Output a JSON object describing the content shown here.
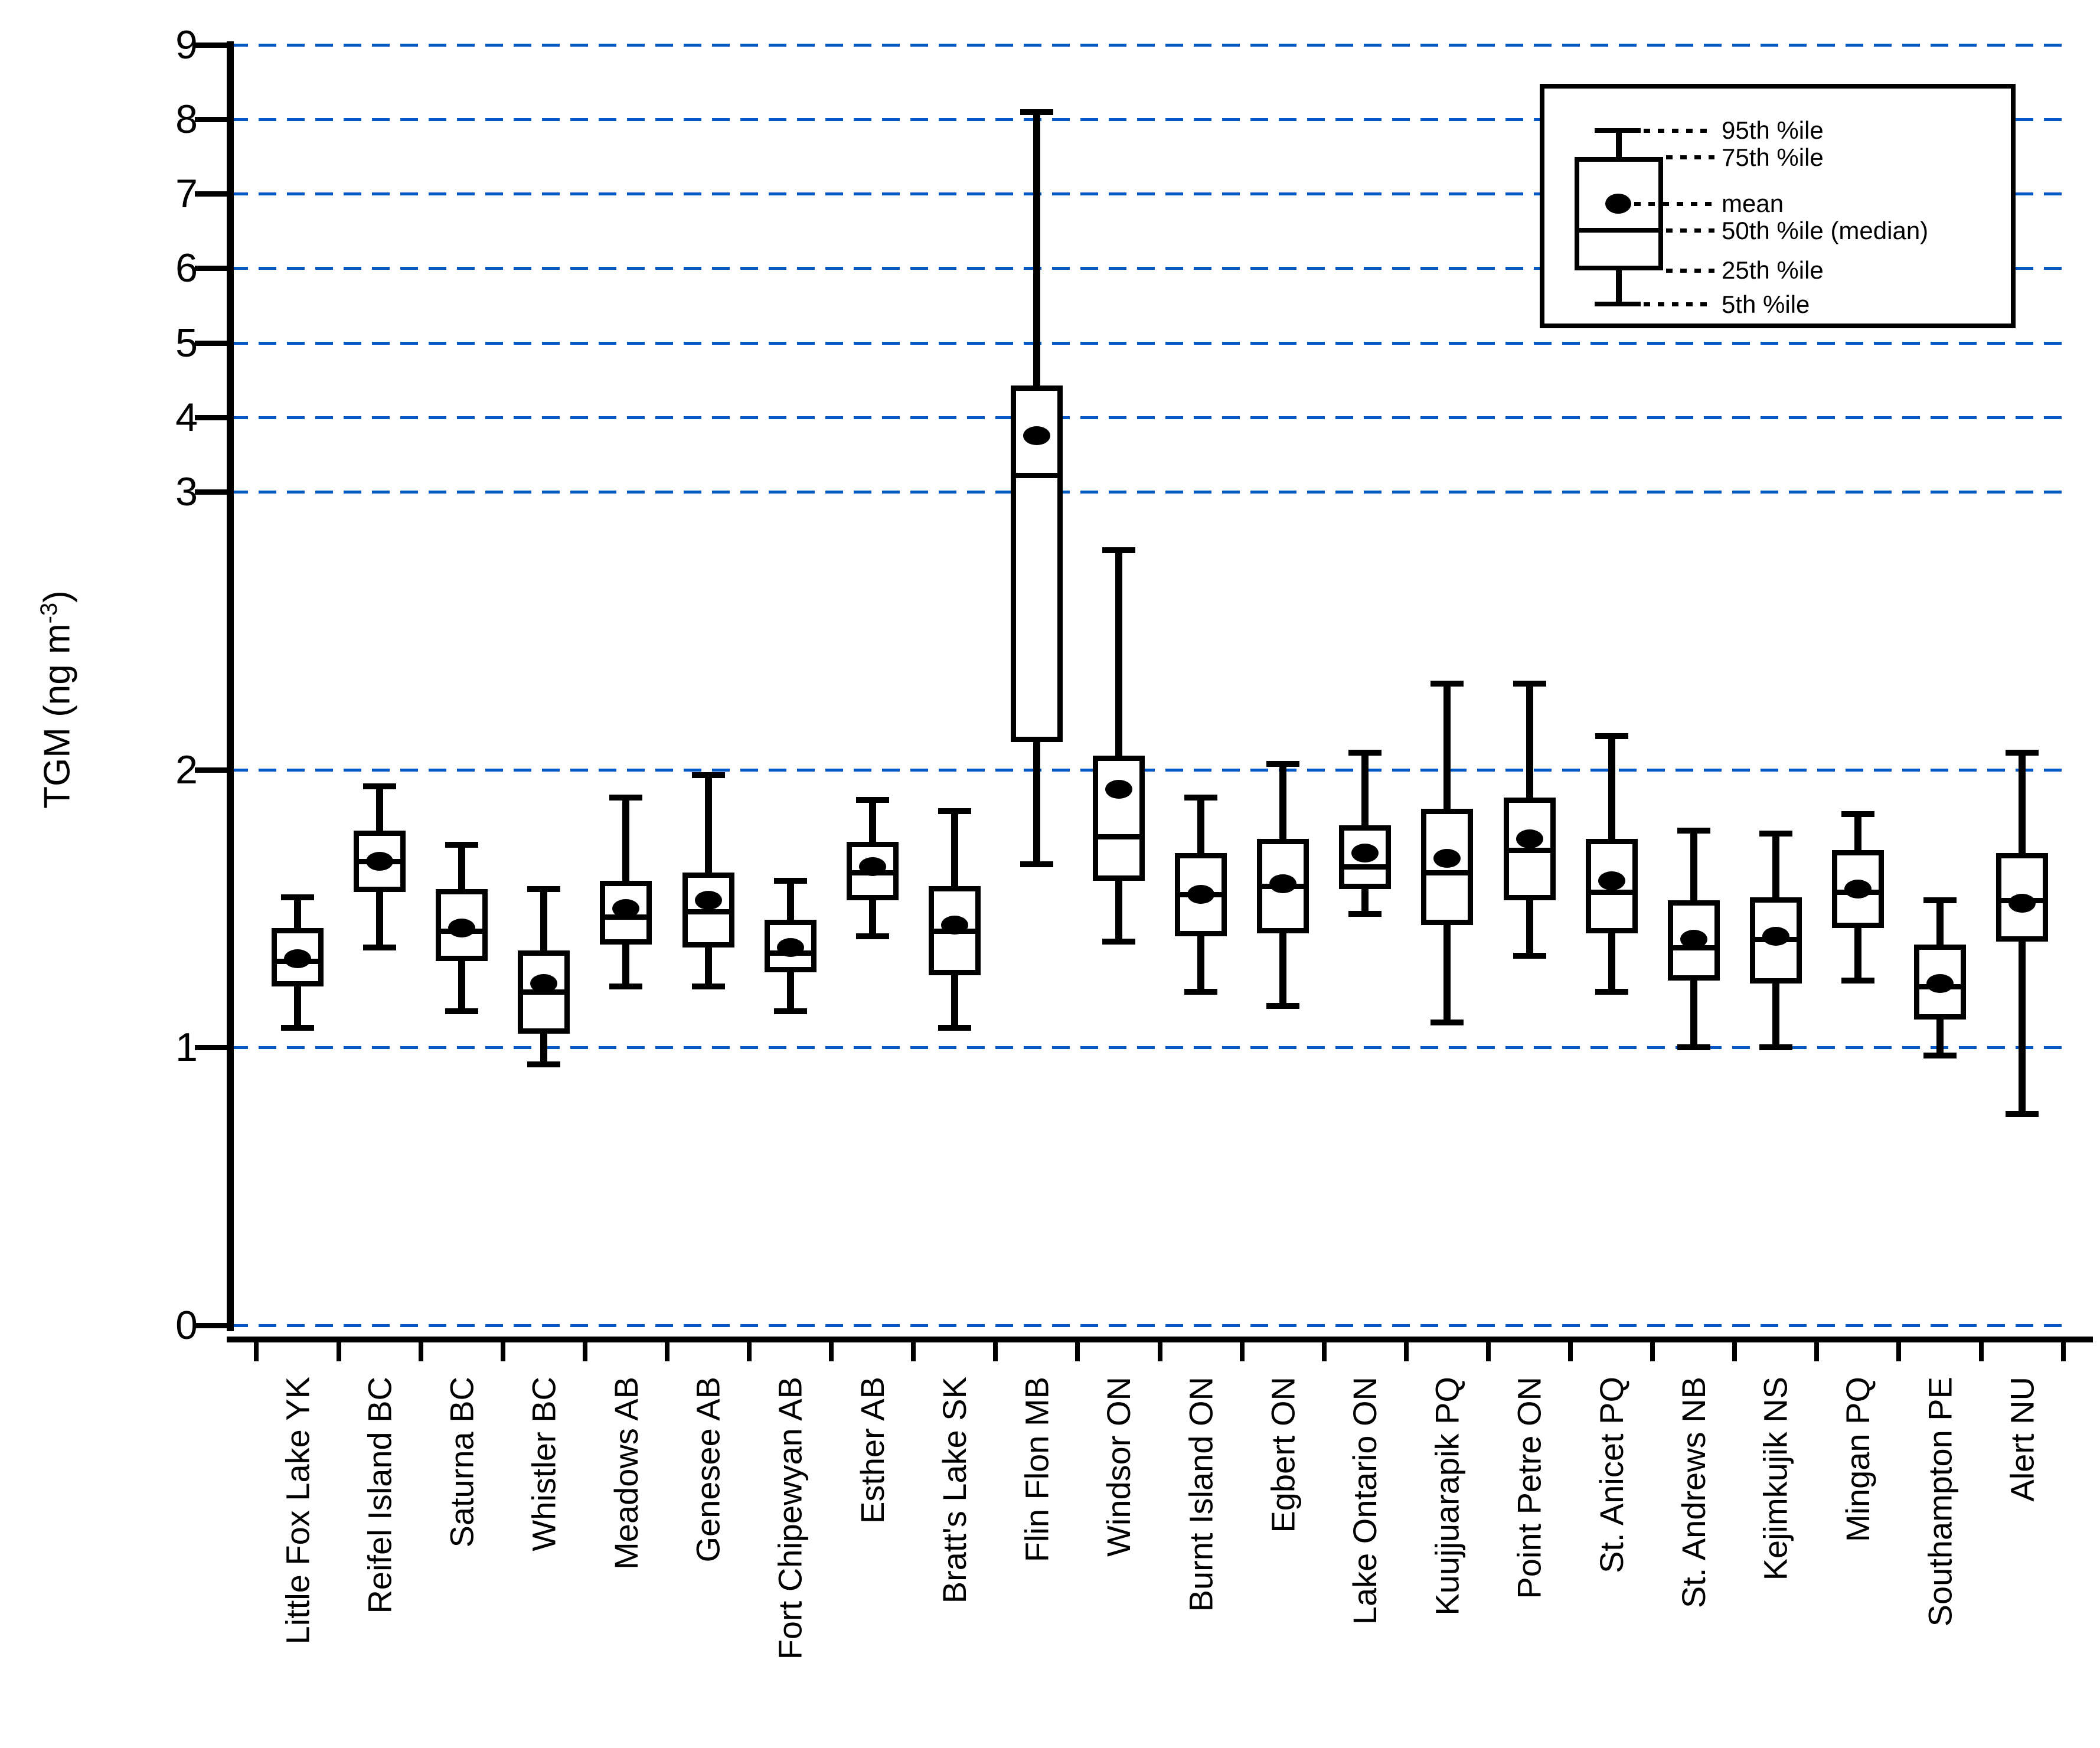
{
  "figure": {
    "ylabel": {
      "prefix": "TGM (ng m",
      "superscript": "-3",
      "suffix": ")"
    },
    "y_tick_labels": [
      "0",
      "1",
      "2",
      "3",
      "4",
      "5",
      "6",
      "7",
      "8",
      "9"
    ],
    "legend": {
      "items": [
        "95th %ile",
        "75th %ile",
        "mean",
        "50th %ile (median)",
        "25th %ile",
        "5th %ile"
      ]
    },
    "colors": {
      "ink": "#000000",
      "gridline": "#0458c4",
      "background": "#ffffff"
    }
  },
  "chart_data": {
    "type": "box",
    "title": "",
    "xlabel": "",
    "ylabel": "TGM (ng m-3)",
    "ylim": [
      0,
      9
    ],
    "y_scale": "piecewise linear: 0 to 3 expanded, 3 to 9 compressed about 3.7x",
    "grid": "horizontal dashed blue lines at every integer 0-9",
    "legend_position": "top-right",
    "box_elements": [
      "5th %ile",
      "25th %ile",
      "50th %ile (median)",
      "mean",
      "75th %ile",
      "95th %ile"
    ],
    "categories": [
      "Little Fox Lake YK",
      "Reifel Island BC",
      "Saturna BC",
      "Whistler BC",
      "Meadows AB",
      "Genesee AB",
      "Fort Chipewyan AB",
      "Esther AB",
      "Bratt's Lake SK",
      "Flin Flon MB",
      "Windsor ON",
      "Burnt Island ON",
      "Egbert ON",
      "Lake Ontario ON",
      "Kuujjuarapik PQ",
      "Point Petre ON",
      "St. Anicet PQ",
      "St. Andrews NB",
      "Kejimkujik NS",
      "Mingan PQ",
      "Southampton PE",
      "Alert NU"
    ],
    "series": [
      {
        "site": "Little Fox Lake YK",
        "p5": 1.07,
        "p25": 1.22,
        "median": 1.31,
        "mean": 1.32,
        "p75": 1.43,
        "p95": 1.54
      },
      {
        "site": "Reifel Island BC",
        "p5": 1.36,
        "p25": 1.56,
        "median": 1.67,
        "mean": 1.67,
        "p75": 1.78,
        "p95": 1.94
      },
      {
        "site": "Saturna BC",
        "p5": 1.13,
        "p25": 1.31,
        "median": 1.42,
        "mean": 1.43,
        "p75": 1.57,
        "p95": 1.73
      },
      {
        "site": "Whistler BC",
        "p5": 0.94,
        "p25": 1.05,
        "median": 1.2,
        "mean": 1.23,
        "p75": 1.35,
        "p95": 1.57
      },
      {
        "site": "Meadows AB",
        "p5": 1.22,
        "p25": 1.37,
        "median": 1.47,
        "mean": 1.5,
        "p75": 1.6,
        "p95": 1.9
      },
      {
        "site": "Genesee AB",
        "p5": 1.22,
        "p25": 1.36,
        "median": 1.49,
        "mean": 1.53,
        "p75": 1.63,
        "p95": 1.98
      },
      {
        "site": "Fort Chipewyan AB",
        "p5": 1.13,
        "p25": 1.27,
        "median": 1.34,
        "mean": 1.36,
        "p75": 1.46,
        "p95": 1.6
      },
      {
        "site": "Esther AB",
        "p5": 1.4,
        "p25": 1.53,
        "median": 1.63,
        "mean": 1.65,
        "p75": 1.74,
        "p95": 1.89
      },
      {
        "site": "Bratt's Lake SK",
        "p5": 1.07,
        "p25": 1.26,
        "median": 1.42,
        "mean": 1.44,
        "p75": 1.58,
        "p95": 1.85
      },
      {
        "site": "Flin Flon MB",
        "p5": 1.66,
        "p25": 2.1,
        "median": 3.22,
        "mean": 3.75,
        "p75": 4.43,
        "p95": 8.1
      },
      {
        "site": "Windsor ON",
        "p5": 1.38,
        "p25": 1.6,
        "median": 1.76,
        "mean": 1.93,
        "p75": 2.05,
        "p95": 2.79
      },
      {
        "site": "Burnt Island ON",
        "p5": 1.2,
        "p25": 1.4,
        "median": 1.55,
        "mean": 1.55,
        "p75": 1.7,
        "p95": 1.9
      },
      {
        "site": "Egbert ON",
        "p5": 1.15,
        "p25": 1.41,
        "median": 1.58,
        "mean": 1.59,
        "p75": 1.75,
        "p95": 2.02
      },
      {
        "site": "Lake Ontario ON",
        "p5": 1.48,
        "p25": 1.57,
        "median": 1.65,
        "mean": 1.7,
        "p75": 1.8,
        "p95": 2.06
      },
      {
        "site": "Kuujjuarapik PQ",
        "p5": 1.09,
        "p25": 1.44,
        "median": 1.63,
        "mean": 1.68,
        "p75": 1.86,
        "p95": 2.31
      },
      {
        "site": "Point Petre ON",
        "p5": 1.33,
        "p25": 1.53,
        "median": 1.71,
        "mean": 1.75,
        "p75": 1.9,
        "p95": 2.31
      },
      {
        "site": "St. Anicet PQ",
        "p5": 1.2,
        "p25": 1.41,
        "median": 1.56,
        "mean": 1.6,
        "p75": 1.75,
        "p95": 2.12
      },
      {
        "site": "St. Andrews NB",
        "p5": 1.0,
        "p25": 1.24,
        "median": 1.36,
        "mean": 1.39,
        "p75": 1.53,
        "p95": 1.78
      },
      {
        "site": "Kejimkujik NS",
        "p5": 1.0,
        "p25": 1.23,
        "median": 1.39,
        "mean": 1.4,
        "p75": 1.54,
        "p95": 1.77
      },
      {
        "site": "Mingan PQ",
        "p5": 1.24,
        "p25": 1.43,
        "median": 1.56,
        "mean": 1.57,
        "p75": 1.71,
        "p95": 1.84
      },
      {
        "site": "Southampton PE",
        "p5": 0.97,
        "p25": 1.1,
        "median": 1.22,
        "mean": 1.23,
        "p75": 1.37,
        "p95": 1.53
      },
      {
        "site": "Alert NU",
        "p5": 0.76,
        "p25": 1.38,
        "median": 1.53,
        "mean": 1.52,
        "p75": 1.7,
        "p95": 2.06
      }
    ]
  }
}
